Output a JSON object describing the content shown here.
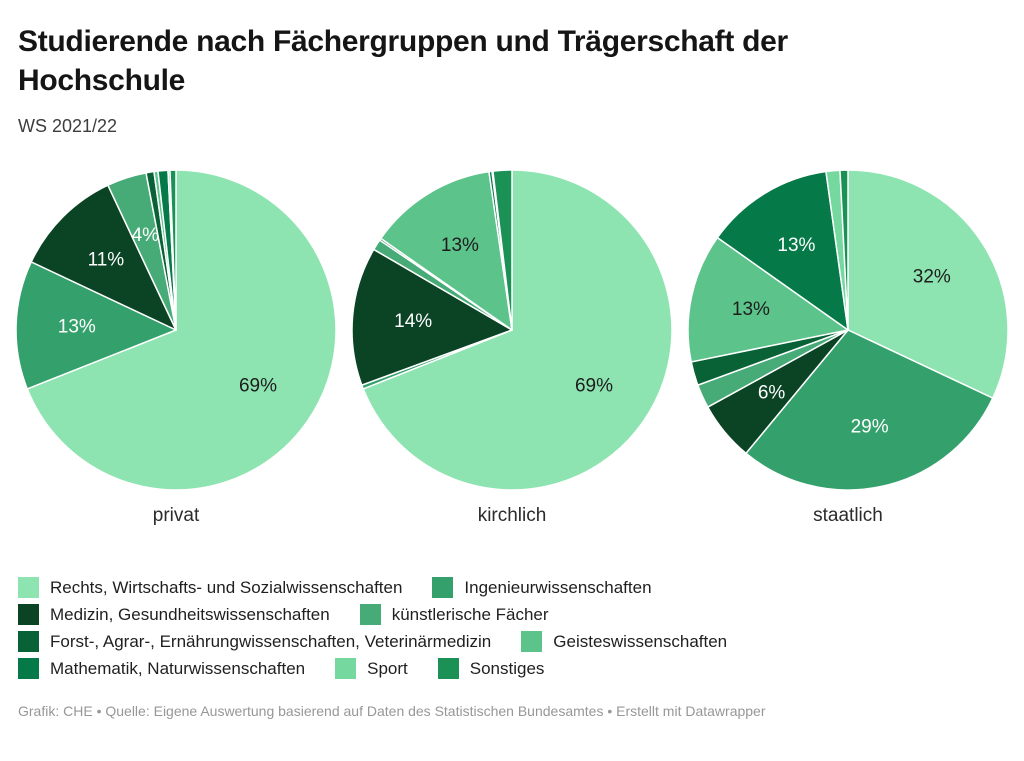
{
  "header": {
    "title": "Studierende nach Fächergruppen und Trägerschaft der Hochschule",
    "subtitle": "WS 2021/22"
  },
  "chart_data": {
    "type": "pie",
    "unit": "%",
    "title": "Studierende nach Fächergruppen und Trägerschaft der Hochschule",
    "subtitle": "WS 2021/22",
    "legend_position": "bottom",
    "categories": [
      "Rechts, Wirtschafts- und Sozialwissenschaften",
      "Ingenieurwissenschaften",
      "Medizin, Gesundheitswissenschaften",
      "künstlerische Fächer",
      "Forst-, Agrar-, Ernährungwissenschaften, Veterinärmedizin",
      "Geisteswissenschaften",
      "Mathematik, Naturwissenschaften",
      "Sport",
      "Sonstiges"
    ],
    "category_ids": [
      "rechts-wirtschaft-sozial",
      "ingenieurwissenschaften",
      "medizin-gesundheit",
      "kuenstlerische-faecher",
      "forst-agrar-ernaehrung-veterinaer",
      "geisteswissenschaften",
      "mathematik-naturwissenschaften",
      "sport",
      "sonstiges"
    ],
    "colors": [
      "#8de4b1",
      "#34a06c",
      "#0a4424",
      "#47ab78",
      "#086236",
      "#5cc38b",
      "#057a48",
      "#74d89f",
      "#1b9156"
    ],
    "label_colors": [
      "#1d1d1d",
      "#ffffff",
      "#ffffff",
      "#ffffff",
      "#ffffff",
      "#1d1d1d",
      "#ffffff",
      "#1d1d1d",
      "#ffffff"
    ],
    "label_radius_frac": 0.62,
    "pies": [
      {
        "label": "privat",
        "values": [
          69,
          13,
          11,
          4,
          0.8,
          0.4,
          1.0,
          0.2,
          0.6
        ],
        "display_labels": [
          "69%",
          "13%",
          "11%",
          "4%",
          "",
          "",
          "",
          "",
          ""
        ]
      },
      {
        "label": "kirchlich",
        "values": [
          69,
          0.4,
          14,
          1.1,
          0.2,
          13,
          0.3,
          0.1,
          1.9
        ],
        "display_labels": [
          "69%",
          "",
          "14%",
          "",
          "",
          "13%",
          "",
          "",
          ""
        ]
      },
      {
        "label": "staatlich",
        "values": [
          32,
          29,
          6,
          2.4,
          2.4,
          13,
          13,
          1.4,
          0.8
        ],
        "display_labels": [
          "32%",
          "29%",
          "6%",
          "",
          "",
          "13%",
          "13%",
          "",
          ""
        ]
      }
    ]
  },
  "legend": {
    "rows": [
      [
        0,
        1
      ],
      [
        2,
        3
      ],
      [
        4,
        5
      ],
      [
        6,
        7,
        8
      ]
    ]
  },
  "footer": {
    "text": "Grafik: CHE • Quelle: Eigene Auswertung basierend auf Daten des Statistischen Bundesamtes • Erstellt mit Datawrapper"
  }
}
